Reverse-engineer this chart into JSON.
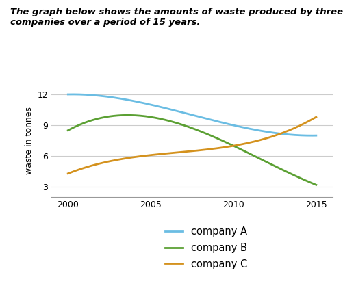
{
  "title_line1": "The graph below shows the amounts of waste produced by three",
  "title_line2": "companies over a period of 15 years.",
  "ylabel": "waste in tonnes",
  "years": [
    2000,
    2005,
    2010,
    2015
  ],
  "company_A": [
    12.0,
    11.0,
    9.0,
    8.0
  ],
  "company_B": [
    8.5,
    9.8,
    7.0,
    3.2
  ],
  "company_C": [
    4.3,
    6.1,
    7.0,
    9.8
  ],
  "color_A": "#6BBDE3",
  "color_B": "#5BA033",
  "color_C": "#D4921E",
  "xlim": [
    1999,
    2016
  ],
  "ylim": [
    2,
    13
  ],
  "yticks": [
    3,
    6,
    9,
    12
  ],
  "xticks": [
    2000,
    2005,
    2010,
    2015
  ],
  "legend_labels": [
    "company A",
    "company B",
    "company C"
  ],
  "title_fontsize": 9.5,
  "axis_fontsize": 9,
  "tick_fontsize": 9,
  "legend_fontsize": 10.5
}
